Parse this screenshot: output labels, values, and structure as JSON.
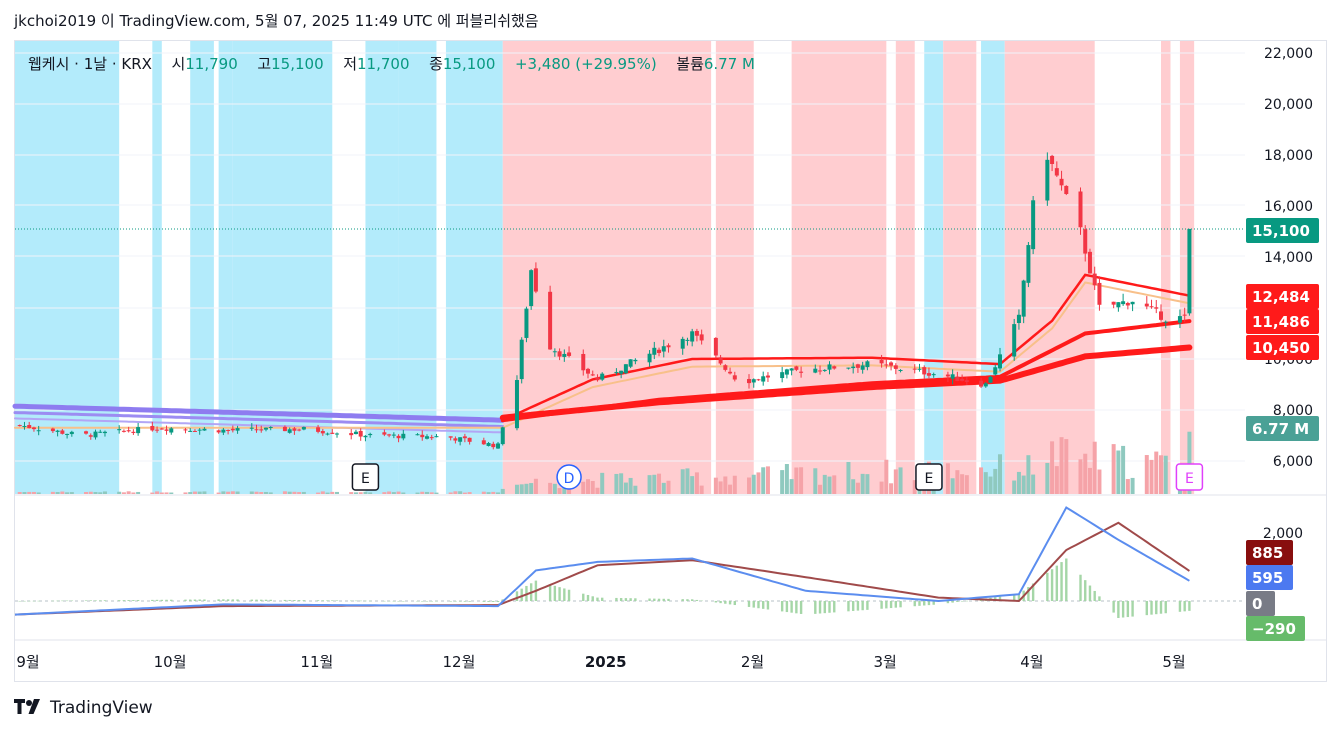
{
  "header": {
    "text": "jkchoi2019 이 TradingView.com, 5월 07, 2025 11:49 UTC 에 퍼블리쉬했음"
  },
  "legend": {
    "symbol": "웹케시 · 1날 · KRX",
    "open_label": "시",
    "open": "11,790",
    "high_label": "고",
    "high": "15,100",
    "low_label": "저",
    "low": "11,700",
    "close_label": "종",
    "close": "15,100",
    "change": "+3,480 (+29.95%)",
    "volume_label": "볼륨",
    "volume": "6.77 M"
  },
  "footer": {
    "brand": "TradingView"
  },
  "colors": {
    "up": "#089981",
    "down": "#f23645",
    "blue_band": "#b3ebfb",
    "pink_band": "#ffcdd0",
    "ma_red": "#ff1a1a",
    "ma_purple": "#8e7cf0",
    "ma_orange": "#f8c08a",
    "macd": "#5b8def",
    "signal": "#a04a4a",
    "hist_up": "#a5d6a7",
    "hist_down": "#a5d6a7"
  },
  "chart_data": {
    "type": "candlestick",
    "y_ticks": [
      "22,000",
      "20,000",
      "18,000",
      "16,000",
      "14,000",
      "10,000",
      "8,000",
      "6,000"
    ],
    "macd_ticks": [
      "2,000"
    ],
    "x_labels": [
      "9월",
      "10월",
      "11월",
      "12월",
      "2025",
      "2월",
      "3월",
      "4월",
      "5월"
    ],
    "price_labels": [
      {
        "text": "15,100",
        "color": "#089981",
        "value": 15100
      },
      {
        "text": "12,484",
        "color": "#ff1a1a",
        "value": 12484
      },
      {
        "text": "11,486",
        "color": "#ff1a1a",
        "value": 11486
      },
      {
        "text": "10,450",
        "color": "#ff1a1a",
        "value": 10450
      }
    ],
    "volume_label": {
      "text": "6.77 M",
      "color": "#4aa196"
    },
    "macd_labels": [
      {
        "text": "885",
        "color": "#880e0e"
      },
      {
        "text": "595",
        "color": "#4c79f0"
      },
      {
        "text": "0",
        "color": "#787b86"
      },
      {
        "text": "−290",
        "color": "#66bb6a"
      }
    ],
    "events": [
      {
        "text": "E",
        "date": "2024-11-14",
        "color": "#131722"
      },
      {
        "text": "D",
        "date": "2024-12-27",
        "color": "#2962ff"
      },
      {
        "text": "E",
        "date": "2025-03-13",
        "color": "#131722"
      },
      {
        "text": "E",
        "date": "2025-05-07",
        "color": "#e040fb"
      }
    ],
    "anchors": [
      {
        "date": "2024-09-02",
        "close": 7400
      },
      {
        "date": "2024-09-15",
        "close": 7000
      },
      {
        "date": "2024-10-01",
        "close": 7300
      },
      {
        "date": "2024-10-16",
        "close": 7200
      },
      {
        "date": "2024-11-01",
        "close": 7250
      },
      {
        "date": "2024-11-15",
        "close": 7000
      },
      {
        "date": "2024-12-01",
        "close": 6950
      },
      {
        "date": "2024-12-12",
        "close": 6600
      },
      {
        "date": "2024-12-13",
        "close": 7400
      },
      {
        "date": "2024-12-16",
        "close": 9200
      },
      {
        "date": "2024-12-19",
        "close": 13500
      },
      {
        "date": "2024-12-23",
        "close": 10500
      },
      {
        "date": "2025-01-02",
        "close": 9200
      },
      {
        "date": "2025-01-14",
        "close": 10300
      },
      {
        "date": "2025-01-22",
        "close": 11000
      },
      {
        "date": "2025-02-01",
        "close": 9100
      },
      {
        "date": "2025-02-15",
        "close": 9600
      },
      {
        "date": "2025-03-01",
        "close": 9800
      },
      {
        "date": "2025-03-15",
        "close": 9400
      },
      {
        "date": "2025-03-25",
        "close": 9000
      },
      {
        "date": "2025-04-01",
        "close": 11600
      },
      {
        "date": "2025-04-04",
        "close": 16000
      },
      {
        "date": "2025-04-07",
        "close": 18000
      },
      {
        "date": "2025-04-14",
        "close": 15000
      },
      {
        "date": "2025-04-18",
        "close": 12000
      },
      {
        "date": "2025-04-25",
        "close": 12300
      },
      {
        "date": "2025-05-02",
        "close": 11600
      },
      {
        "date": "2025-05-06",
        "close": 11620
      },
      {
        "date": "2025-05-07",
        "close": 15100
      }
    ],
    "ma_fast_anchors": [
      {
        "date": "2024-12-13",
        "value": 7600
      },
      {
        "date": "2025-01-01",
        "value": 9200
      },
      {
        "date": "2025-01-22",
        "value": 10000
      },
      {
        "date": "2025-03-01",
        "value": 10050
      },
      {
        "date": "2025-03-28",
        "value": 9800
      },
      {
        "date": "2025-04-08",
        "value": 11500
      },
      {
        "date": "2025-04-15",
        "value": 13300
      },
      {
        "date": "2025-05-07",
        "value": 12484
      }
    ],
    "ma_mid_anchors": [
      {
        "date": "2024-12-13",
        "value": 7600
      },
      {
        "date": "2025-01-15",
        "value": 8400
      },
      {
        "date": "2025-03-01",
        "value": 9050
      },
      {
        "date": "2025-03-28",
        "value": 9300
      },
      {
        "date": "2025-04-15",
        "value": 11000
      },
      {
        "date": "2025-05-07",
        "value": 11486
      }
    ],
    "ma_slow_anchors": [
      {
        "date": "2024-12-13",
        "value": 7700
      },
      {
        "date": "2025-01-15",
        "value": 8300
      },
      {
        "date": "2025-03-01",
        "value": 8900
      },
      {
        "date": "2025-03-28",
        "value": 9150
      },
      {
        "date": "2025-04-15",
        "value": 10100
      },
      {
        "date": "2025-05-07",
        "value": 10450
      }
    ],
    "ma_purple_anchors": [
      {
        "date": "2024-09-01",
        "value": 8150
      },
      {
        "date": "2024-12-13",
        "value": 7600
      }
    ],
    "volume_anchors": [
      {
        "date": "2024-12-16",
        "volume": 2.2
      },
      {
        "date": "2024-12-19",
        "volume": 2.9
      },
      {
        "date": "2025-04-04",
        "volume": 6.5
      },
      {
        "date": "2025-04-07",
        "volume": 11.5
      },
      {
        "date": "2025-04-08",
        "volume": 9.3
      },
      {
        "date": "2025-05-07",
        "volume": 6.77
      }
    ],
    "macd_anchors": [
      {
        "date": "2024-09-01",
        "macd": -400,
        "signal": -400
      },
      {
        "date": "2024-10-15",
        "macd": -100,
        "signal": -150
      },
      {
        "date": "2024-12-12",
        "macd": -150,
        "signal": -120
      },
      {
        "date": "2024-12-20",
        "macd": 900,
        "signal": 300
      },
      {
        "date": "2025-01-02",
        "macd": 1150,
        "signal": 1050
      },
      {
        "date": "2025-01-22",
        "macd": 1250,
        "signal": 1200
      },
      {
        "date": "2025-02-15",
        "macd": 300,
        "signal": 700
      },
      {
        "date": "2025-03-15",
        "macd": 0,
        "signal": 100
      },
      {
        "date": "2025-04-01",
        "macd": 200,
        "signal": 0
      },
      {
        "date": "2025-04-11",
        "macd": 2750,
        "signal": 1500
      },
      {
        "date": "2025-04-22",
        "macd": 1800,
        "signal": 2300
      },
      {
        "date": "2025-05-07",
        "macd": 595,
        "signal": 885
      }
    ]
  }
}
